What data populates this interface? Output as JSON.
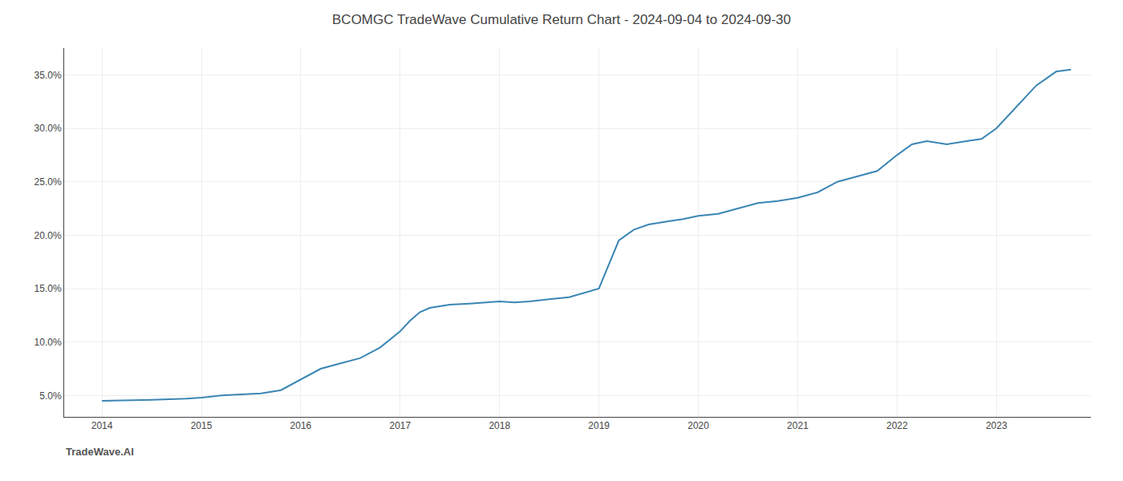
{
  "chart_data": {
    "type": "line",
    "title": "BCOMGC TradeWave Cumulative Return Chart - 2024-09-04 to 2024-09-30",
    "annotations": [
      "TradeWave.AI"
    ],
    "x": [
      2014.0,
      2014.15,
      2014.3,
      2014.5,
      2014.7,
      2014.85,
      2015.0,
      2015.2,
      2015.4,
      2015.6,
      2015.8,
      2016.0,
      2016.2,
      2016.4,
      2016.6,
      2016.8,
      2017.0,
      2017.1,
      2017.2,
      2017.3,
      2017.5,
      2017.7,
      2017.85,
      2018.0,
      2018.15,
      2018.3,
      2018.5,
      2018.7,
      2019.0,
      2019.2,
      2019.35,
      2019.5,
      2019.7,
      2019.85,
      2020.0,
      2020.2,
      2020.4,
      2020.6,
      2020.8,
      2021.0,
      2021.2,
      2021.4,
      2021.6,
      2021.8,
      2022.0,
      2022.15,
      2022.3,
      2022.5,
      2022.7,
      2022.85,
      2023.0,
      2023.2,
      2023.4,
      2023.6,
      2023.75
    ],
    "values": [
      4.5,
      4.5,
      4.55,
      4.6,
      4.65,
      4.7,
      4.8,
      5.0,
      5.1,
      5.2,
      5.5,
      6.5,
      7.5,
      8.0,
      8.5,
      9.5,
      11.0,
      12.0,
      12.8,
      13.2,
      13.5,
      13.6,
      13.7,
      13.8,
      13.7,
      13.8,
      14.0,
      14.2,
      15.0,
      19.5,
      20.5,
      21.0,
      21.3,
      21.5,
      21.8,
      22.0,
      22.5,
      23.0,
      23.2,
      23.5,
      24.0,
      25.0,
      25.5,
      26.0,
      27.5,
      28.5,
      28.8,
      28.5,
      28.8,
      29.0,
      30.0,
      32.0,
      34.0,
      35.3,
      35.5
    ],
    "color": "#3a86b4",
    "xlim": [
      2013.62,
      2023.95
    ],
    "ylim": [
      3.0,
      37.5
    ],
    "xticks": [
      2014,
      2015,
      2016,
      2017,
      2018,
      2019,
      2020,
      2021,
      2022,
      2023
    ],
    "yticks": [
      {
        "value": 5.0,
        "label": "5.0%"
      },
      {
        "value": 10.0,
        "label": "10.0%"
      },
      {
        "value": 15.0,
        "label": "15.0%"
      },
      {
        "value": 20.0,
        "label": "20.0%"
      },
      {
        "value": 25.0,
        "label": "25.0%"
      },
      {
        "value": 30.0,
        "label": "30.0%"
      },
      {
        "value": 35.0,
        "label": "35.0%"
      }
    ],
    "grid": true
  }
}
